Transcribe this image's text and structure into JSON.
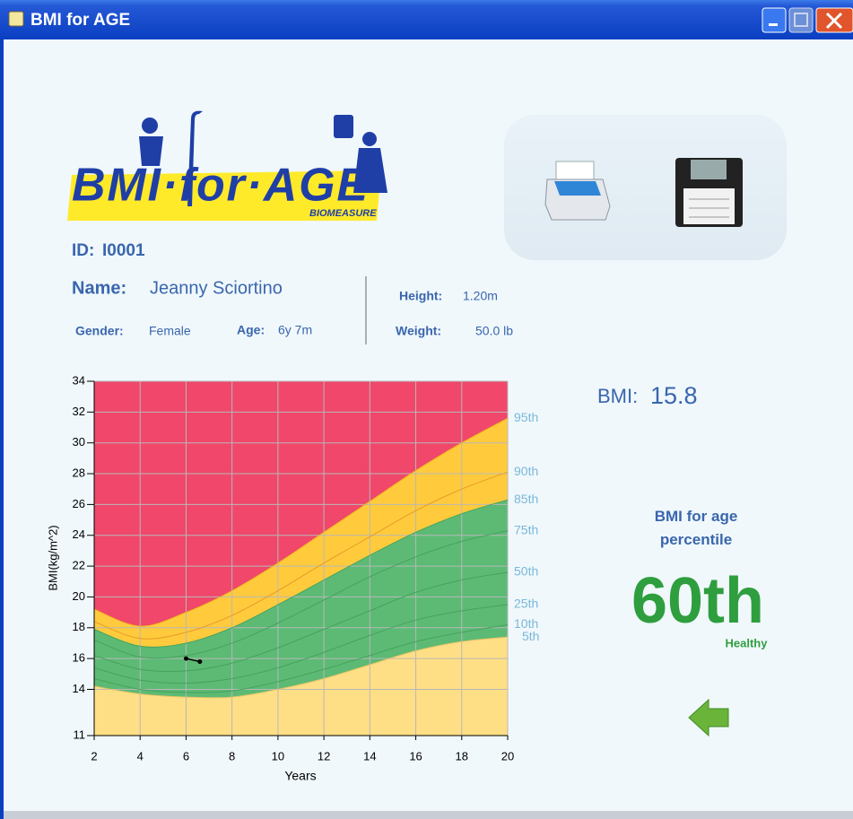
{
  "window": {
    "title": "BMI for AGE"
  },
  "logo": {
    "text": "BMI·for·AGE",
    "subtitle": "BIOMEASURE"
  },
  "patient": {
    "id_label": "ID:",
    "id": "I0001",
    "name_label": "Name:",
    "name": "Jeanny Sciortino",
    "gender_label": "Gender:",
    "gender": "Female",
    "age_label": "Age:",
    "age": "6y 7m",
    "height_label": "Height:",
    "height": "1.20m",
    "weight_label": "Weight:",
    "weight": "50.0 lb"
  },
  "result": {
    "bmi_label": "BMI:",
    "bmi": 15.8,
    "percentile_title": "BMI for age percentile",
    "percentile": "60th",
    "status": "Healthy"
  },
  "chart_data": {
    "type": "line",
    "y_label": "BMI(kg/m^2)",
    "x_label": "Years",
    "background": "#f0476a",
    "grid": true,
    "x": [
      2,
      4,
      6,
      8,
      10,
      12,
      14,
      16,
      18,
      20
    ],
    "xlim": [
      2,
      20
    ],
    "xticks": [
      2,
      4,
      6,
      8,
      10,
      12,
      14,
      16,
      18,
      20
    ],
    "ylim": [
      11,
      34
    ],
    "yticks": [
      11,
      14,
      16,
      18,
      20,
      22,
      24,
      26,
      28,
      30,
      32,
      34
    ],
    "series": [
      {
        "name": "95th",
        "color": "#f2b320",
        "fill": "#ffcb3c",
        "values": [
          19.2,
          18.1,
          19.0,
          20.4,
          22.2,
          24.2,
          26.2,
          28.2,
          30.0,
          31.6
        ]
      },
      {
        "name": "90th",
        "color": "#e89a2a",
        "values": [
          18.4,
          17.3,
          17.7,
          18.8,
          20.4,
          22.2,
          23.9,
          25.6,
          27.0,
          28.1
        ]
      },
      {
        "name": "85th",
        "color": "#47a35f",
        "fill": "#5cba74",
        "values": [
          17.9,
          16.8,
          17.0,
          18.0,
          19.5,
          21.1,
          22.7,
          24.2,
          25.4,
          26.3
        ]
      },
      {
        "name": "75th",
        "color": "#45a35c",
        "values": [
          17.2,
          16.1,
          16.2,
          17.0,
          18.3,
          19.8,
          21.3,
          22.6,
          23.6,
          24.3
        ]
      },
      {
        "name": "50th",
        "color": "#45a35c",
        "values": [
          16.2,
          15.3,
          15.2,
          15.7,
          16.7,
          17.9,
          19.1,
          20.3,
          21.1,
          21.6
        ]
      },
      {
        "name": "25th",
        "color": "#45a35c",
        "values": [
          15.4,
          14.6,
          14.4,
          14.7,
          15.4,
          16.4,
          17.5,
          18.5,
          19.1,
          19.5
        ]
      },
      {
        "name": "10th",
        "color": "#45a35c",
        "values": [
          14.7,
          14.0,
          13.8,
          13.9,
          14.5,
          15.3,
          16.2,
          17.1,
          17.7,
          18.2
        ]
      },
      {
        "name": "5th",
        "color": "#e6c468",
        "fill": "#ffdf85",
        "values": [
          14.2,
          13.7,
          13.5,
          13.5,
          14.0,
          14.7,
          15.6,
          16.5,
          17.1,
          17.4
        ]
      }
    ],
    "points": {
      "color": "#000000",
      "x": [
        6,
        6.6
      ],
      "values": [
        16.0,
        15.8
      ]
    }
  }
}
